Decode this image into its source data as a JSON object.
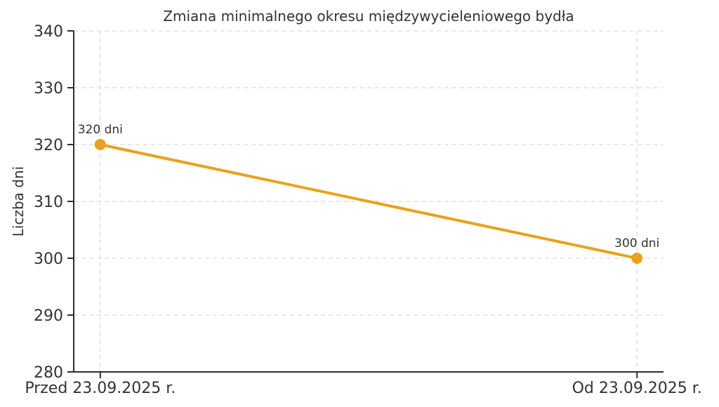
{
  "chart_data": {
    "type": "line",
    "title": "Zmiana minimalnego okresu międzywycieleniowego bydła",
    "xlabel": "",
    "ylabel": "Liczba dni",
    "categories": [
      "Przed 23.09.2025 r.",
      "Od 23.09.2025 r."
    ],
    "values": [
      320,
      300
    ],
    "annotations": [
      "320 dni",
      "300 dni"
    ],
    "ylim": [
      280,
      340
    ],
    "yticks": [
      280,
      290,
      300,
      310,
      320,
      330,
      340
    ],
    "line_color": "#E8A21B",
    "marker_color": "#E8A21B",
    "grid": "dashed-both-axes",
    "legend": "none"
  }
}
